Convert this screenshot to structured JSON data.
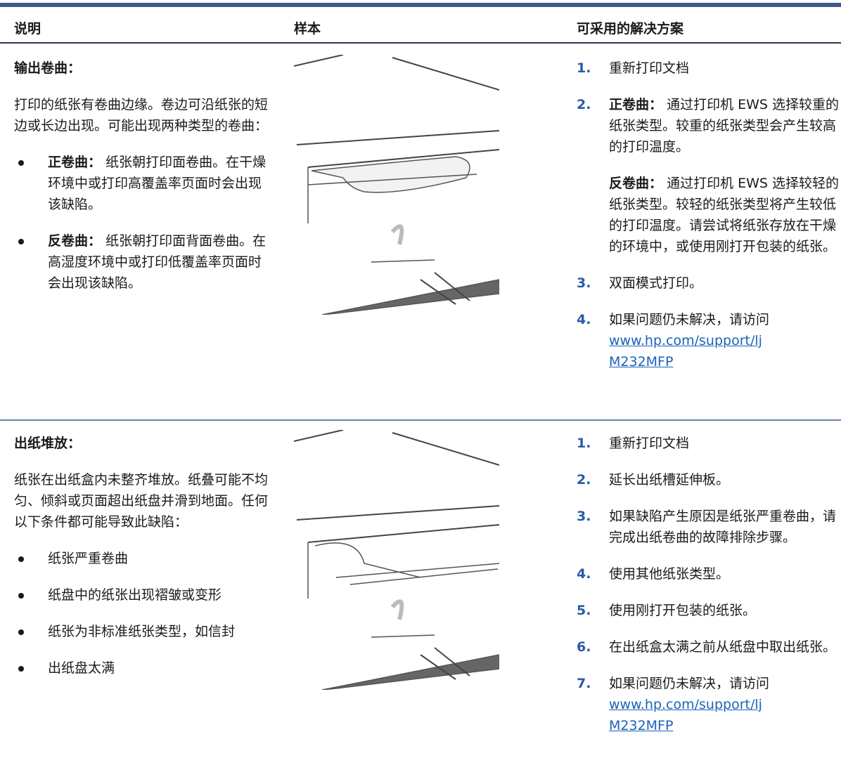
{
  "table": {
    "headers": [
      "说明",
      "样本",
      "可采用的解决方案"
    ],
    "rows": [
      {
        "title": "输出卷曲：",
        "description": "打印的纸张有卷曲边缘。卷边可沿纸张的短边或长边出现。可能出现两种类型的卷曲：",
        "bullets": [
          {
            "term": "正卷曲：",
            "text": "纸张朝打印面卷曲。在干燥环境中或打印高覆盖率页面时会出现该缺陷。"
          },
          {
            "term": "反卷曲：",
            "text": "纸张朝打印面背面卷曲。在高湿度环境中或打印低覆盖率页面时会出现该缺陷。"
          }
        ],
        "solutions": [
          {
            "number": "1.",
            "paragraphs": [
              {
                "text": "重新打印文档"
              }
            ]
          },
          {
            "number": "2.",
            "paragraphs": [
              {
                "term": "正卷曲：",
                "text": "通过打印机 EWS 选择较重的纸张类型。较重的纸张类型会产生较高的打印温度。"
              },
              {
                "term": "反卷曲：",
                "text": "通过打印机 EWS 选择较轻的纸张类型。较轻的纸张类型将产生较低的打印温度。请尝试将纸张存放在干燥的环境中，或使用刚打开包装的纸张。"
              }
            ]
          },
          {
            "number": "3.",
            "paragraphs": [
              {
                "text": "双面模式打印。"
              }
            ]
          },
          {
            "number": "4.",
            "paragraphs": [
              {
                "text": "如果问题仍未解决，请访问",
                "link": "www.hp.com/support/ljM232MFP"
              }
            ]
          }
        ]
      },
      {
        "title": "出纸堆放：",
        "description": "纸张在出纸盒内未整齐堆放。纸叠可能不均匀、倾斜或页面超出纸盘并滑到地面。任何以下条件都可能导致此缺陷：",
        "bullets": [
          {
            "text": "纸张严重卷曲"
          },
          {
            "text": "纸盘中的纸张出现褶皱或变形"
          },
          {
            "text": "纸张为非标准纸张类型，如信封"
          },
          {
            "text": "出纸盘太满"
          }
        ],
        "solutions": [
          {
            "number": "1.",
            "paragraphs": [
              {
                "text": "重新打印文档"
              }
            ]
          },
          {
            "number": "2.",
            "paragraphs": [
              {
                "text": "延长出纸槽延伸板。"
              }
            ]
          },
          {
            "number": "3.",
            "paragraphs": [
              {
                "text": "如果缺陷产生原因是纸张严重卷曲，请完成出纸卷曲的故障排除步骤。"
              }
            ]
          },
          {
            "number": "4.",
            "paragraphs": [
              {
                "text": "使用其他纸张类型。"
              }
            ]
          },
          {
            "number": "5.",
            "paragraphs": [
              {
                "text": "使用刚打开包装的纸张。"
              }
            ]
          },
          {
            "number": "6.",
            "paragraphs": [
              {
                "text": "在出纸盒太满之前从纸盘中取出纸张。"
              }
            ]
          },
          {
            "number": "7.",
            "paragraphs": [
              {
                "text": "如果问题仍未解决，请访问",
                "link": "www.hp.com/support/ljM232MFP"
              }
            ]
          }
        ]
      }
    ]
  }
}
